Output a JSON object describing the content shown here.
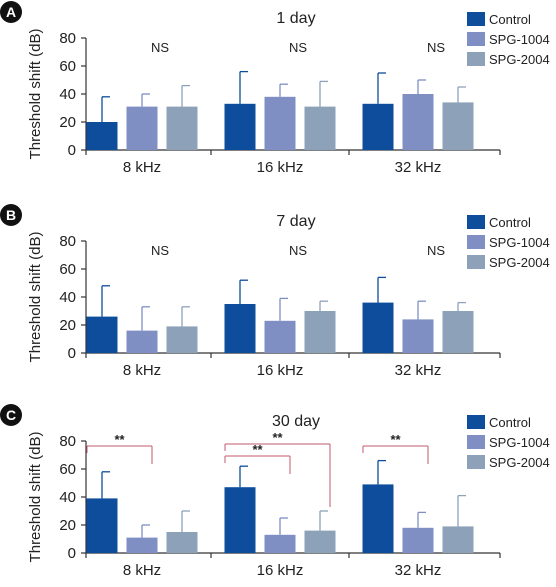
{
  "colors": {
    "Control": "#0d4d9c",
    "SPG-1004": "#7f8fc4",
    "SPG-2004": "#8da2b8"
  },
  "chart_data": [
    {
      "type": "bar",
      "panel": "A",
      "title": "1 day",
      "ylabel": "Threshold shift (dB)",
      "ylim": [
        0,
        80
      ],
      "yticks": [
        0,
        20,
        40,
        60,
        80
      ],
      "categories": [
        "8 kHz",
        "16 kHz",
        "32 kHz"
      ],
      "series": [
        {
          "name": "Control",
          "values": [
            20,
            33,
            33
          ],
          "errors": [
            18,
            23,
            22
          ]
        },
        {
          "name": "SPG-1004",
          "values": [
            31,
            38,
            40
          ],
          "errors": [
            9,
            9,
            10
          ]
        },
        {
          "name": "SPG-2004",
          "values": [
            31,
            31,
            34
          ],
          "errors": [
            15,
            18,
            11
          ]
        }
      ],
      "annotations": [
        {
          "category": 0,
          "text": "NS"
        },
        {
          "category": 1,
          "text": "NS"
        },
        {
          "category": 2,
          "text": "NS"
        }
      ],
      "significance": []
    },
    {
      "type": "bar",
      "panel": "B",
      "title": "7 day",
      "ylabel": "Threshold shift (dB)",
      "ylim": [
        0,
        80
      ],
      "yticks": [
        0,
        20,
        40,
        60,
        80
      ],
      "categories": [
        "8 kHz",
        "16 kHz",
        "32 kHz"
      ],
      "series": [
        {
          "name": "Control",
          "values": [
            26,
            35,
            36
          ],
          "errors": [
            22,
            17,
            18
          ]
        },
        {
          "name": "SPG-1004",
          "values": [
            16,
            23,
            24
          ],
          "errors": [
            17,
            16,
            13
          ]
        },
        {
          "name": "SPG-2004",
          "values": [
            19,
            30,
            30
          ],
          "errors": [
            14,
            7,
            6
          ]
        }
      ],
      "annotations": [
        {
          "category": 0,
          "text": "NS"
        },
        {
          "category": 1,
          "text": "NS"
        },
        {
          "category": 2,
          "text": "NS"
        }
      ],
      "significance": []
    },
    {
      "type": "bar",
      "panel": "C",
      "title": "30 day",
      "ylabel": "Threshold shift (dB)",
      "ylim": [
        0,
        80
      ],
      "yticks": [
        0,
        20,
        40,
        60,
        80
      ],
      "categories": [
        "8 kHz",
        "16 kHz",
        "32 kHz"
      ],
      "series": [
        {
          "name": "Control",
          "values": [
            39,
            47,
            49
          ],
          "errors": [
            19,
            15,
            17
          ]
        },
        {
          "name": "SPG-1004",
          "values": [
            11,
            13,
            18
          ],
          "errors": [
            9,
            12,
            11
          ]
        },
        {
          "name": "SPG-2004",
          "values": [
            15,
            16,
            19
          ],
          "errors": [
            15,
            14,
            22
          ]
        }
      ],
      "annotations": [],
      "significance": [
        {
          "category": 0,
          "from": 0,
          "to": 1,
          "level": 0,
          "text": "**"
        },
        {
          "category": 1,
          "from": 0,
          "to": 1,
          "level": 0,
          "text": "**"
        },
        {
          "category": 1,
          "from": 0,
          "to": 2,
          "level": 1,
          "text": "**"
        },
        {
          "category": 2,
          "from": 0,
          "to": 1,
          "level": 0,
          "text": "**"
        }
      ]
    }
  ]
}
